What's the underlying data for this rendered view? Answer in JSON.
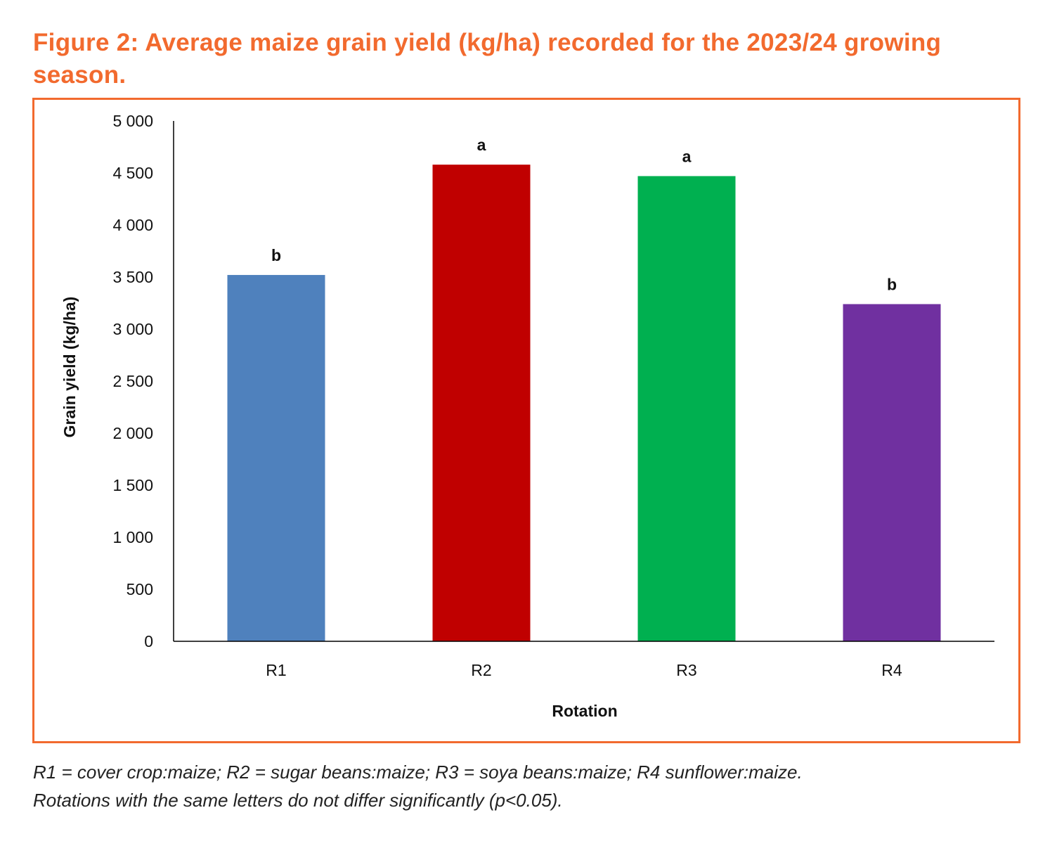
{
  "title": "Figure 2: Average maize grain yield (kg/ha) recorded for the 2023/24 growing season.",
  "caption": {
    "line1": "R1 = cover crop:maize; R2 = sugar beans:maize; R3 = soya beans:maize; R4 sunflower:maize.",
    "line2": "Rotations with the same letters do not differ significantly (p<0.05)."
  },
  "chart_data": {
    "type": "bar",
    "title": "Figure 2: Average maize grain yield (kg/ha) recorded for the 2023/24 growing season.",
    "xlabel": "Rotation",
    "ylabel": "Grain yield (kg/ha)",
    "ylim": [
      0,
      5000
    ],
    "yticks": [
      0,
      500,
      1000,
      1500,
      2000,
      2500,
      3000,
      3500,
      4000,
      4500,
      5000
    ],
    "ytick_labels": [
      "0",
      "500",
      "1 000",
      "1 500",
      "2 000",
      "2 500",
      "3 000",
      "3 500",
      "4 000",
      "4 500",
      "5 000"
    ],
    "categories": [
      "R1",
      "R2",
      "R3",
      "R4"
    ],
    "values": [
      3520,
      4580,
      4470,
      3240
    ],
    "significance_letters": [
      "b",
      "a",
      "a",
      "b"
    ],
    "colors": [
      "#4F81BD",
      "#C00000",
      "#00B050",
      "#7030A0"
    ],
    "grid": false,
    "legend": "none"
  }
}
